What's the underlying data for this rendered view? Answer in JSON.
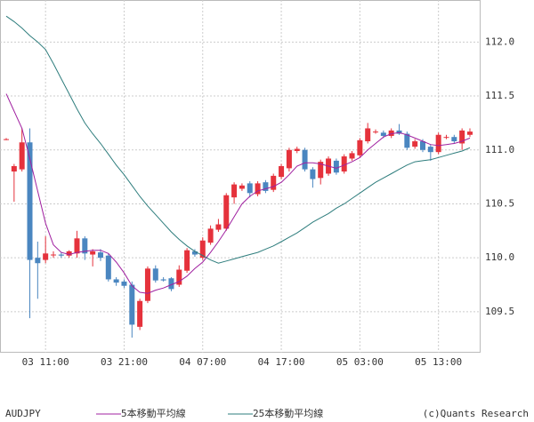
{
  "chart_data": {
    "type": "candlestick",
    "symbol": "AUDJPY",
    "credit": "(c)Quants Research",
    "categories": [
      null,
      null,
      null,
      null,
      null,
      "03 11:00",
      null,
      null,
      null,
      null,
      null,
      null,
      null,
      null,
      null,
      "03 21:00",
      null,
      null,
      null,
      null,
      null,
      null,
      null,
      null,
      null,
      "04 07:00",
      null,
      null,
      null,
      null,
      null,
      null,
      null,
      null,
      null,
      "04 17:00",
      null,
      null,
      null,
      null,
      null,
      null,
      null,
      null,
      null,
      "05 03:00",
      null,
      null,
      null,
      null,
      null,
      null,
      null,
      null,
      null,
      "05 13:00",
      null,
      null,
      null,
      null
    ],
    "open": [
      111.1,
      110.8,
      110.82,
      111.07,
      110.0,
      109.98,
      110.03,
      110.03,
      110.02,
      110.04,
      110.18,
      110.03,
      110.05,
      110.02,
      109.8,
      109.78,
      109.75,
      109.36,
      109.6,
      109.9,
      109.8,
      109.81,
      109.75,
      109.88,
      110.06,
      110.0,
      110.14,
      110.26,
      110.27,
      110.56,
      110.64,
      110.69,
      110.59,
      110.7,
      110.63,
      110.75,
      110.83,
      110.99,
      111.0,
      110.82,
      110.74,
      110.78,
      110.9,
      110.8,
      110.92,
      110.95,
      111.08,
      111.17,
      111.16,
      111.13,
      111.18,
      111.15,
      111.03,
      111.08,
      111.03,
      110.98,
      111.12,
      111.12,
      111.06,
      111.14
    ],
    "high": [
      111.11,
      110.87,
      111.2,
      111.2,
      110.15,
      110.2,
      110.06,
      110.05,
      110.07,
      110.25,
      110.2,
      110.08,
      110.08,
      110.04,
      109.82,
      109.8,
      109.78,
      109.62,
      109.92,
      109.93,
      109.82,
      109.82,
      109.93,
      110.09,
      110.08,
      110.19,
      110.3,
      110.36,
      110.6,
      110.7,
      110.69,
      110.71,
      110.71,
      110.72,
      110.78,
      110.87,
      111.02,
      111.03,
      111.02,
      110.84,
      110.91,
      110.94,
      110.92,
      110.96,
      110.99,
      111.11,
      111.25,
      111.19,
      111.18,
      111.2,
      111.24,
      111.17,
      111.1,
      111.1,
      111.05,
      111.16,
      111.14,
      111.14,
      111.2,
      111.2
    ],
    "low": [
      111.09,
      110.52,
      110.8,
      109.44,
      109.62,
      109.95,
      110.0,
      110.0,
      110.0,
      110.0,
      109.98,
      109.92,
      109.97,
      109.78,
      109.74,
      109.72,
      109.26,
      109.33,
      109.58,
      109.77,
      109.78,
      109.69,
      109.73,
      109.86,
      110.01,
      109.98,
      110.12,
      110.24,
      110.25,
      110.5,
      110.62,
      110.56,
      110.57,
      110.6,
      110.61,
      110.73,
      110.8,
      110.97,
      110.8,
      110.65,
      110.68,
      110.76,
      110.77,
      110.78,
      110.9,
      110.93,
      111.06,
      111.15,
      111.11,
      111.11,
      111.14,
      111.0,
      111.01,
      110.98,
      110.9,
      110.96,
      111.1,
      111.06,
      111.0,
      111.12
    ],
    "close": [
      111.1,
      110.85,
      111.07,
      109.98,
      109.95,
      110.04,
      110.03,
      110.02,
      110.06,
      110.18,
      110.04,
      110.06,
      110.0,
      109.8,
      109.77,
      109.74,
      109.38,
      109.6,
      109.9,
      109.79,
      109.79,
      109.71,
      109.89,
      110.07,
      110.03,
      110.16,
      110.27,
      110.31,
      110.58,
      110.68,
      110.67,
      110.6,
      110.69,
      110.62,
      110.76,
      110.85,
      111.0,
      111.01,
      110.82,
      110.73,
      110.89,
      110.92,
      110.79,
      110.94,
      110.97,
      111.09,
      111.2,
      111.17,
      111.13,
      111.18,
      111.15,
      111.02,
      111.08,
      111.0,
      110.98,
      111.14,
      111.12,
      111.08,
      111.18,
      111.17
    ],
    "up_color": "#e5323c",
    "down_color": "#4a86c0",
    "series": [
      {
        "name": "5本移動平均線",
        "color": "#a020a0",
        "values": [
          111.52,
          111.36,
          111.2,
          110.92,
          110.62,
          110.32,
          110.12,
          110.05,
          110.03,
          110.05,
          110.06,
          110.07,
          110.07,
          110.04,
          109.96,
          109.86,
          109.74,
          109.68,
          109.67,
          109.7,
          109.72,
          109.75,
          109.78,
          109.83,
          109.9,
          109.96,
          110.05,
          110.15,
          110.26,
          110.38,
          110.5,
          110.57,
          110.62,
          110.64,
          110.66,
          110.7,
          110.77,
          110.85,
          110.88,
          110.88,
          110.87,
          110.85,
          110.83,
          110.86,
          110.89,
          110.93,
          111.0,
          111.06,
          111.12,
          111.15,
          111.16,
          111.14,
          111.11,
          111.08,
          111.05,
          111.04,
          111.05,
          111.06,
          111.08,
          111.11
        ]
      },
      {
        "name": "25本移動平均線",
        "color": "#2e7d7d",
        "values": [
          112.24,
          112.19,
          112.13,
          112.06,
          112.0,
          111.93,
          111.8,
          111.66,
          111.52,
          111.38,
          111.25,
          111.15,
          111.06,
          110.96,
          110.86,
          110.77,
          110.67,
          110.57,
          110.48,
          110.4,
          110.32,
          110.24,
          110.17,
          110.11,
          110.06,
          110.02,
          109.98,
          109.95,
          109.97,
          109.99,
          110.01,
          110.03,
          110.05,
          110.08,
          110.11,
          110.15,
          110.19,
          110.23,
          110.28,
          110.33,
          110.37,
          110.41,
          110.46,
          110.5,
          110.55,
          110.6,
          110.65,
          110.7,
          110.74,
          110.78,
          110.82,
          110.86,
          110.89,
          110.9,
          110.91,
          110.93,
          110.95,
          110.97,
          110.99,
          111.02
        ]
      }
    ],
    "ylim": [
      109.12,
      112.39
    ],
    "yticks": [
      109.5,
      {
        "value": 110.0,
        "label": "110.0"
      },
      110.5,
      {
        "value": 111.0,
        "label": "111.0"
      },
      111.5,
      {
        "value": 112.0,
        "label": "112.0"
      }
    ],
    "grid": true
  }
}
